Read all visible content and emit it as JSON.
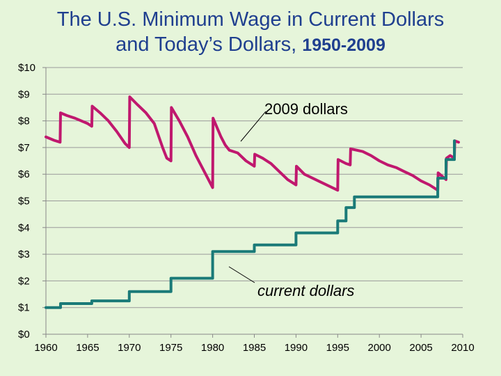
{
  "title_line1": "The U.S. Minimum Wage in Current Dollars",
  "title_line2": "and Today’s Dollars,",
  "title_years": "1950-2009",
  "colors": {
    "real": "#c0186e",
    "nominal": "#1a7a78",
    "background": "#e6f5da",
    "title": "#1f3f8f"
  },
  "chart_data": {
    "type": "line",
    "title": "The U.S. Minimum Wage in Current Dollars and Today’s Dollars, 1950-2009",
    "xlabel": "",
    "ylabel": "",
    "xlim": [
      1960,
      2010
    ],
    "ylim": [
      0,
      10
    ],
    "grid": true,
    "x_ticks": [
      1960,
      1965,
      1970,
      1975,
      1980,
      1985,
      1990,
      1995,
      2000,
      2005,
      2010
    ],
    "x_tick_labels": [
      "1960",
      "1965",
      "1970",
      "1975",
      "1980",
      "1985",
      "1990",
      "1995",
      "2000",
      "2005",
      "2010"
    ],
    "y_ticks": [
      0,
      1,
      2,
      3,
      4,
      5,
      6,
      7,
      8,
      9,
      10
    ],
    "y_tick_labels": [
      "$0",
      "$1",
      "$2",
      "$3",
      "$4",
      "$5",
      "$6",
      "$7",
      "$8",
      "$9",
      "$10"
    ],
    "annotations": [
      {
        "text": "2009 dollars",
        "series": "2009 dollars"
      },
      {
        "text": "current dollars",
        "series": "current dollars"
      }
    ],
    "series": [
      {
        "name": "2009 dollars",
        "points": [
          [
            1960,
            7.4
          ],
          [
            1961.0,
            7.27
          ],
          [
            1961.7,
            7.2
          ],
          [
            1961.75,
            8.3
          ],
          [
            1962.5,
            8.2
          ],
          [
            1963.5,
            8.1
          ],
          [
            1965.0,
            7.9
          ],
          [
            1965.5,
            7.8
          ],
          [
            1965.55,
            8.55
          ],
          [
            1966.5,
            8.3
          ],
          [
            1967.5,
            8.0
          ],
          [
            1968.5,
            7.6
          ],
          [
            1969.5,
            7.15
          ],
          [
            1970.0,
            7.0
          ],
          [
            1970.05,
            8.9
          ],
          [
            1971.0,
            8.6
          ],
          [
            1972.0,
            8.3
          ],
          [
            1973.0,
            7.9
          ],
          [
            1974.0,
            7.0
          ],
          [
            1974.5,
            6.6
          ],
          [
            1975.0,
            6.5
          ],
          [
            1975.05,
            8.5
          ],
          [
            1976.0,
            8.0
          ],
          [
            1977.0,
            7.4
          ],
          [
            1978.0,
            6.7
          ],
          [
            1979.0,
            6.1
          ],
          [
            1980.0,
            5.5
          ],
          [
            1980.05,
            8.1
          ],
          [
            1981.0,
            7.4
          ],
          [
            1981.5,
            7.1
          ],
          [
            1982.0,
            6.9
          ],
          [
            1983.0,
            6.8
          ],
          [
            1984.0,
            6.5
          ],
          [
            1985.0,
            6.3
          ],
          [
            1985.05,
            6.75
          ],
          [
            1986.0,
            6.6
          ],
          [
            1987.0,
            6.4
          ],
          [
            1988.0,
            6.1
          ],
          [
            1989.0,
            5.8
          ],
          [
            1990.0,
            5.6
          ],
          [
            1990.05,
            6.3
          ],
          [
            1991.0,
            6.0
          ],
          [
            1992.0,
            5.85
          ],
          [
            1993.0,
            5.7
          ],
          [
            1994.0,
            5.55
          ],
          [
            1995.0,
            5.4
          ],
          [
            1995.05,
            6.55
          ],
          [
            1996.0,
            6.4
          ],
          [
            1996.5,
            6.35
          ],
          [
            1996.55,
            6.95
          ],
          [
            1998.0,
            6.85
          ],
          [
            1999.0,
            6.7
          ],
          [
            2000.0,
            6.5
          ],
          [
            2001.0,
            6.35
          ],
          [
            2002.0,
            6.25
          ],
          [
            2003.0,
            6.1
          ],
          [
            2004.0,
            5.95
          ],
          [
            2005.0,
            5.75
          ],
          [
            2006.0,
            5.6
          ],
          [
            2007.0,
            5.4
          ],
          [
            2007.05,
            6.05
          ],
          [
            2008.0,
            5.8
          ],
          [
            2008.05,
            6.6
          ],
          [
            2008.5,
            6.7
          ],
          [
            2009.0,
            6.6
          ],
          [
            2009.05,
            7.25
          ],
          [
            2009.5,
            7.2
          ]
        ]
      },
      {
        "name": "current dollars",
        "points": [
          [
            1960,
            1.0
          ],
          [
            1961.75,
            1.0
          ],
          [
            1961.75,
            1.15
          ],
          [
            1965.5,
            1.15
          ],
          [
            1965.5,
            1.25
          ],
          [
            1970.0,
            1.25
          ],
          [
            1970.0,
            1.6
          ],
          [
            1975.0,
            1.6
          ],
          [
            1975.0,
            2.1
          ],
          [
            1980.0,
            2.1
          ],
          [
            1980.0,
            3.1
          ],
          [
            1985.0,
            3.1
          ],
          [
            1985.0,
            3.35
          ],
          [
            1990.0,
            3.35
          ],
          [
            1990.0,
            3.8
          ],
          [
            1995.0,
            3.8
          ],
          [
            1995.0,
            4.25
          ],
          [
            1996.0,
            4.25
          ],
          [
            1996.0,
            4.75
          ],
          [
            1997.0,
            4.75
          ],
          [
            1997.0,
            5.15
          ],
          [
            2007.0,
            5.15
          ],
          [
            2007.0,
            5.85
          ],
          [
            2008.0,
            5.85
          ],
          [
            2008.0,
            6.55
          ],
          [
            2009.0,
            6.55
          ],
          [
            2009.0,
            7.25
          ]
        ]
      }
    ]
  }
}
